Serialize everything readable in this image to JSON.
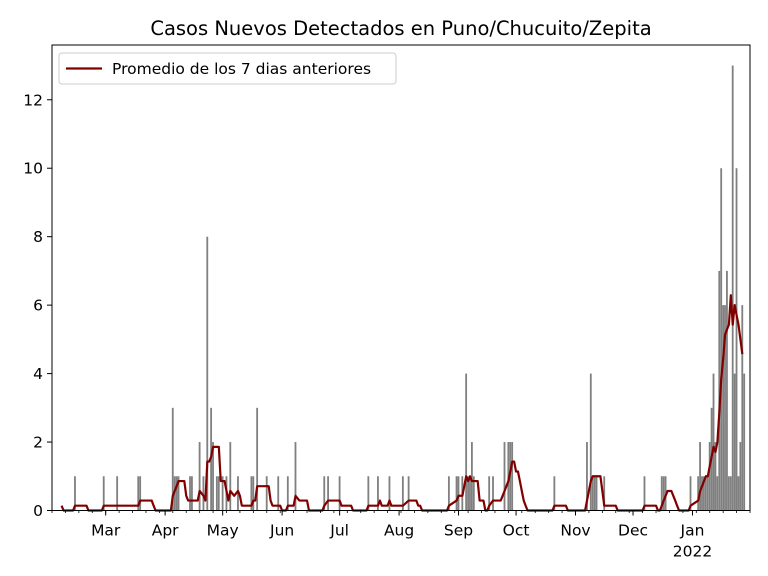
{
  "chart_data": {
    "type": "bar",
    "title": "Casos Nuevos Detectados en Puno/Chucuito/Zepita",
    "xlabel": "",
    "ylabel": "",
    "ylim": [
      0,
      13.6
    ],
    "yticks": [
      0,
      2,
      4,
      6,
      8,
      10,
      12
    ],
    "xticks": [
      {
        "date": "2021-03-01",
        "label": "Mar",
        "sublabel": ""
      },
      {
        "date": "2021-04-01",
        "label": "Apr",
        "sublabel": ""
      },
      {
        "date": "2021-05-01",
        "label": "May",
        "sublabel": ""
      },
      {
        "date": "2021-06-01",
        "label": "Jun",
        "sublabel": ""
      },
      {
        "date": "2021-07-01",
        "label": "Jul",
        "sublabel": ""
      },
      {
        "date": "2021-08-01",
        "label": "Aug",
        "sublabel": ""
      },
      {
        "date": "2021-09-01",
        "label": "Sep",
        "sublabel": ""
      },
      {
        "date": "2021-10-01",
        "label": "Oct",
        "sublabel": ""
      },
      {
        "date": "2021-11-01",
        "label": "Nov",
        "sublabel": ""
      },
      {
        "date": "2021-12-01",
        "label": "Dec",
        "sublabel": ""
      },
      {
        "date": "2022-01-01",
        "label": "Jan",
        "sublabel": "2022"
      }
    ],
    "xlim": [
      "2021-02-01",
      "2022-01-31"
    ],
    "grid": false,
    "legend_position": "upper left",
    "colors": {
      "bars": "#808080",
      "line": "#800000"
    },
    "series": [
      {
        "kind": "bar",
        "name": "",
        "points": [
          [
            "2021-02-13",
            1
          ],
          [
            "2021-02-28",
            1
          ],
          [
            "2021-03-07",
            1
          ],
          [
            "2021-03-18",
            1
          ],
          [
            "2021-03-19",
            1
          ],
          [
            "2021-04-05",
            3
          ],
          [
            "2021-04-06",
            1
          ],
          [
            "2021-04-07",
            1
          ],
          [
            "2021-04-08",
            1
          ],
          [
            "2021-04-14",
            1
          ],
          [
            "2021-04-15",
            1
          ],
          [
            "2021-04-19",
            2
          ],
          [
            "2021-04-21",
            1
          ],
          [
            "2021-04-23",
            8
          ],
          [
            "2021-04-25",
            3
          ],
          [
            "2021-04-26",
            2
          ],
          [
            "2021-04-28",
            1
          ],
          [
            "2021-04-29",
            1
          ],
          [
            "2021-05-01",
            1
          ],
          [
            "2021-05-03",
            1
          ],
          [
            "2021-05-05",
            2
          ],
          [
            "2021-05-09",
            1
          ],
          [
            "2021-05-16",
            1
          ],
          [
            "2021-05-17",
            1
          ],
          [
            "2021-05-19",
            3
          ],
          [
            "2021-05-24",
            1
          ],
          [
            "2021-05-30",
            1
          ],
          [
            "2021-06-04",
            1
          ],
          [
            "2021-06-08",
            2
          ],
          [
            "2021-06-23",
            1
          ],
          [
            "2021-06-25",
            1
          ],
          [
            "2021-07-01",
            1
          ],
          [
            "2021-07-16",
            1
          ],
          [
            "2021-07-21",
            1
          ],
          [
            "2021-07-27",
            1
          ],
          [
            "2021-08-03",
            1
          ],
          [
            "2021-08-06",
            1
          ],
          [
            "2021-08-27",
            1
          ],
          [
            "2021-08-31",
            1
          ],
          [
            "2021-09-01",
            1
          ],
          [
            "2021-09-03",
            1
          ],
          [
            "2021-09-05",
            4
          ],
          [
            "2021-09-06",
            1
          ],
          [
            "2021-09-07",
            1
          ],
          [
            "2021-09-08",
            2
          ],
          [
            "2021-09-09",
            1
          ],
          [
            "2021-09-17",
            1
          ],
          [
            "2021-09-19",
            1
          ],
          [
            "2021-09-25",
            2
          ],
          [
            "2021-09-27",
            2
          ],
          [
            "2021-09-28",
            2
          ],
          [
            "2021-09-29",
            2
          ],
          [
            "2021-10-21",
            1
          ],
          [
            "2021-11-07",
            2
          ],
          [
            "2021-11-09",
            4
          ],
          [
            "2021-11-10",
            1
          ],
          [
            "2021-11-11",
            1
          ],
          [
            "2021-11-12",
            1
          ],
          [
            "2021-11-16",
            1
          ],
          [
            "2021-12-07",
            1
          ],
          [
            "2021-12-16",
            1
          ],
          [
            "2021-12-17",
            1
          ],
          [
            "2021-12-18",
            1
          ],
          [
            "2021-12-31",
            1
          ],
          [
            "2022-01-04",
            1
          ],
          [
            "2022-01-05",
            2
          ],
          [
            "2022-01-06",
            1
          ],
          [
            "2022-01-07",
            1
          ],
          [
            "2022-01-08",
            1
          ],
          [
            "2022-01-09",
            1
          ],
          [
            "2022-01-10",
            2
          ],
          [
            "2022-01-11",
            3
          ],
          [
            "2022-01-12",
            4
          ],
          [
            "2022-01-13",
            2
          ],
          [
            "2022-01-14",
            1
          ],
          [
            "2022-01-15",
            7
          ],
          [
            "2022-01-16",
            10
          ],
          [
            "2022-01-17",
            6
          ],
          [
            "2022-01-18",
            6
          ],
          [
            "2022-01-19",
            7
          ],
          [
            "2022-01-20",
            1
          ],
          [
            "2022-01-21",
            1
          ],
          [
            "2022-01-22",
            13
          ],
          [
            "2022-01-23",
            4
          ],
          [
            "2022-01-24",
            10
          ],
          [
            "2022-01-25",
            1
          ],
          [
            "2022-01-26",
            2
          ],
          [
            "2022-01-27",
            6
          ],
          [
            "2022-01-28",
            4
          ]
        ]
      },
      {
        "kind": "line",
        "name": "Promedio de los 7 dias anteriores",
        "points": [
          [
            "2021-02-06",
            0.14
          ],
          [
            "2021-02-07",
            0
          ],
          [
            "2021-02-12",
            0
          ],
          [
            "2021-02-13",
            0.14
          ],
          [
            "2021-02-19",
            0.14
          ],
          [
            "2021-02-20",
            0
          ],
          [
            "2021-02-27",
            0
          ],
          [
            "2021-02-28",
            0.14
          ],
          [
            "2021-03-07",
            0.14
          ],
          [
            "2021-03-18",
            0.14
          ],
          [
            "2021-03-19",
            0.29
          ],
          [
            "2021-03-25",
            0.29
          ],
          [
            "2021-03-26",
            0.14
          ],
          [
            "2021-03-27",
            0
          ],
          [
            "2021-04-04",
            0
          ],
          [
            "2021-04-05",
            0.43
          ],
          [
            "2021-04-06",
            0.57
          ],
          [
            "2021-04-07",
            0.71
          ],
          [
            "2021-04-08",
            0.86
          ],
          [
            "2021-04-11",
            0.86
          ],
          [
            "2021-04-12",
            0.43
          ],
          [
            "2021-04-13",
            0.29
          ],
          [
            "2021-04-18",
            0.29
          ],
          [
            "2021-04-19",
            0.57
          ],
          [
            "2021-04-21",
            0.43
          ],
          [
            "2021-04-22",
            0.29
          ],
          [
            "2021-04-23",
            1.43
          ],
          [
            "2021-04-24",
            1.43
          ],
          [
            "2021-04-25",
            1.57
          ],
          [
            "2021-04-26",
            1.86
          ],
          [
            "2021-04-29",
            1.86
          ],
          [
            "2021-04-30",
            0.86
          ],
          [
            "2021-05-02",
            0.86
          ],
          [
            "2021-05-03",
            0.57
          ],
          [
            "2021-05-04",
            0.29
          ],
          [
            "2021-05-05",
            0.57
          ],
          [
            "2021-05-07",
            0.43
          ],
          [
            "2021-05-09",
            0.57
          ],
          [
            "2021-05-10",
            0.43
          ],
          [
            "2021-05-11",
            0.14
          ],
          [
            "2021-05-16",
            0.14
          ],
          [
            "2021-05-17",
            0.29
          ],
          [
            "2021-05-18",
            0.29
          ],
          [
            "2021-05-19",
            0.71
          ],
          [
            "2021-05-25",
            0.71
          ],
          [
            "2021-05-26",
            0.29
          ],
          [
            "2021-05-27",
            0.14
          ],
          [
            "2021-05-30",
            0.14
          ],
          [
            "2021-05-31",
            0.14
          ],
          [
            "2021-06-01",
            0
          ],
          [
            "2021-06-03",
            0
          ],
          [
            "2021-06-04",
            0.14
          ],
          [
            "2021-06-07",
            0.14
          ],
          [
            "2021-06-08",
            0.43
          ],
          [
            "2021-06-10",
            0.29
          ],
          [
            "2021-06-14",
            0.29
          ],
          [
            "2021-06-15",
            0
          ],
          [
            "2021-06-22",
            0
          ],
          [
            "2021-06-23",
            0.14
          ],
          [
            "2021-06-25",
            0.29
          ],
          [
            "2021-07-01",
            0.29
          ],
          [
            "2021-07-02",
            0.14
          ],
          [
            "2021-07-07",
            0.14
          ],
          [
            "2021-07-08",
            0
          ],
          [
            "2021-07-15",
            0
          ],
          [
            "2021-07-16",
            0.14
          ],
          [
            "2021-07-21",
            0.14
          ],
          [
            "2021-07-22",
            0.29
          ],
          [
            "2021-07-23",
            0.14
          ],
          [
            "2021-07-26",
            0.14
          ],
          [
            "2021-07-27",
            0.29
          ],
          [
            "2021-07-28",
            0.14
          ],
          [
            "2021-08-02",
            0.14
          ],
          [
            "2021-08-03",
            0.14
          ],
          [
            "2021-08-06",
            0.29
          ],
          [
            "2021-08-10",
            0.29
          ],
          [
            "2021-08-11",
            0.14
          ],
          [
            "2021-08-12",
            0.14
          ],
          [
            "2021-08-13",
            0
          ],
          [
            "2021-08-26",
            0
          ],
          [
            "2021-08-27",
            0.14
          ],
          [
            "2021-08-31",
            0.29
          ],
          [
            "2021-09-01",
            0.43
          ],
          [
            "2021-09-03",
            0.43
          ],
          [
            "2021-09-05",
            1.0
          ],
          [
            "2021-09-06",
            0.86
          ],
          [
            "2021-09-07",
            1.0
          ],
          [
            "2021-09-08",
            0.86
          ],
          [
            "2021-09-11",
            0.86
          ],
          [
            "2021-09-12",
            0.29
          ],
          [
            "2021-09-14",
            0.29
          ],
          [
            "2021-09-15",
            0
          ],
          [
            "2021-09-16",
            0
          ],
          [
            "2021-09-17",
            0.14
          ],
          [
            "2021-09-19",
            0.29
          ],
          [
            "2021-09-23",
            0.29
          ],
          [
            "2021-09-25",
            0.57
          ],
          [
            "2021-09-27",
            0.86
          ],
          [
            "2021-09-28",
            1.14
          ],
          [
            "2021-09-29",
            1.43
          ],
          [
            "2021-09-30",
            1.43
          ],
          [
            "2021-10-01",
            1.14
          ],
          [
            "2021-10-02",
            1.14
          ],
          [
            "2021-10-03",
            0.86
          ],
          [
            "2021-10-04",
            0.57
          ],
          [
            "2021-10-05",
            0.29
          ],
          [
            "2021-10-06",
            0.14
          ],
          [
            "2021-10-07",
            0
          ],
          [
            "2021-10-20",
            0
          ],
          [
            "2021-10-21",
            0.14
          ],
          [
            "2021-10-27",
            0.14
          ],
          [
            "2021-10-28",
            0
          ],
          [
            "2021-11-06",
            0
          ],
          [
            "2021-11-07",
            0.29
          ],
          [
            "2021-11-09",
            0.86
          ],
          [
            "2021-11-10",
            1.0
          ],
          [
            "2021-11-14",
            1.0
          ],
          [
            "2021-11-15",
            0.57
          ],
          [
            "2021-11-16",
            0.14
          ],
          [
            "2021-11-22",
            0.14
          ],
          [
            "2021-11-23",
            0
          ],
          [
            "2021-12-06",
            0
          ],
          [
            "2021-12-07",
            0.14
          ],
          [
            "2021-12-13",
            0.14
          ],
          [
            "2021-12-14",
            0
          ],
          [
            "2021-12-15",
            0
          ],
          [
            "2021-12-16",
            0.14
          ],
          [
            "2021-12-17",
            0.29
          ],
          [
            "2021-12-18",
            0.43
          ],
          [
            "2021-12-19",
            0.57
          ],
          [
            "2021-12-21",
            0.57
          ],
          [
            "2021-12-22",
            0.43
          ],
          [
            "2021-12-23",
            0.29
          ],
          [
            "2021-12-24",
            0.14
          ],
          [
            "2021-12-25",
            0
          ],
          [
            "2021-12-30",
            0
          ],
          [
            "2021-12-31",
            0.14
          ],
          [
            "2022-01-04",
            0.29
          ],
          [
            "2022-01-05",
            0.57
          ],
          [
            "2022-01-06",
            0.71
          ],
          [
            "2022-01-07",
            0.86
          ],
          [
            "2022-01-08",
            1.0
          ],
          [
            "2022-01-09",
            1.0
          ],
          [
            "2022-01-10",
            1.29
          ],
          [
            "2022-01-11",
            1.57
          ],
          [
            "2022-01-12",
            1.86
          ],
          [
            "2022-01-13",
            1.71
          ],
          [
            "2022-01-14",
            2.0
          ],
          [
            "2022-01-15",
            2.86
          ],
          [
            "2022-01-16",
            3.86
          ],
          [
            "2022-01-17",
            4.43
          ],
          [
            "2022-01-18",
            5.14
          ],
          [
            "2022-01-19",
            5.29
          ],
          [
            "2022-01-20",
            5.43
          ],
          [
            "2022-01-21",
            6.29
          ],
          [
            "2022-01-22",
            5.43
          ],
          [
            "2022-01-23",
            6.0
          ],
          [
            "2022-01-24",
            5.71
          ],
          [
            "2022-01-25",
            5.43
          ],
          [
            "2022-01-26",
            5.0
          ],
          [
            "2022-01-27",
            4.57
          ]
        ]
      }
    ]
  }
}
